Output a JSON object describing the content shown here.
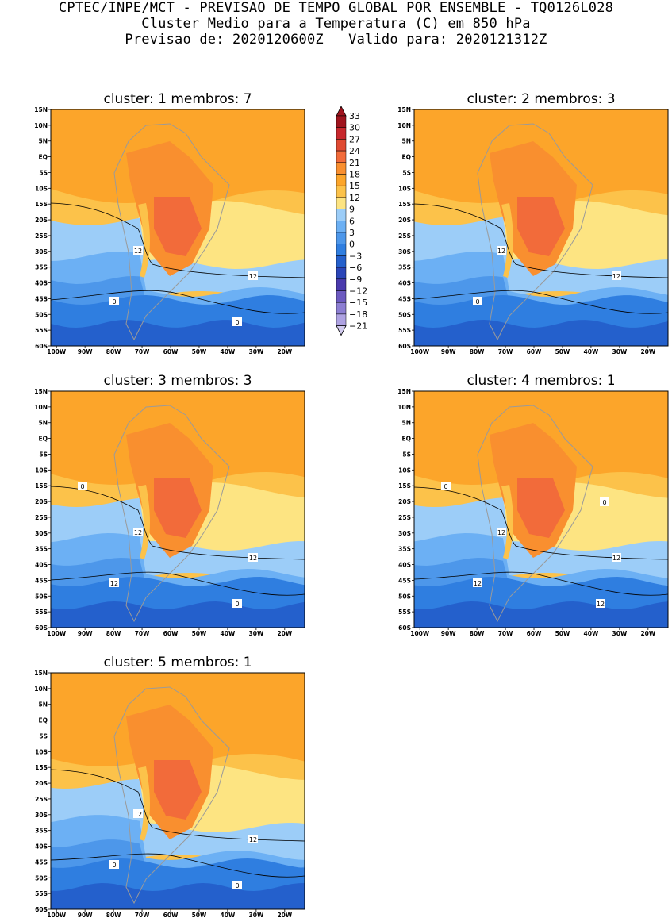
{
  "header": {
    "title": "CPTEC/INPE/MCT - PREVISAO DE TEMPO GLOBAL POR ENSEMBLE - TQ0126L028",
    "subtitle": "Cluster Medio para a Temperatura (C) em 850 hPa",
    "dates": "Previsao de: 2020120600Z   Valido para: 2020121312Z"
  },
  "axes": {
    "lat_labels": [
      "15N",
      "10N",
      "5N",
      "EQ",
      "5S",
      "10S",
      "15S",
      "20S",
      "25S",
      "30S",
      "35S",
      "40S",
      "45S",
      "50S",
      "55S",
      "60S"
    ],
    "lon_labels": [
      "100W",
      "90W",
      "80W",
      "70W",
      "60W",
      "50W",
      "40W",
      "30W",
      "20W"
    ]
  },
  "legend": {
    "levels": [
      33,
      30,
      27,
      24,
      21,
      18,
      15,
      12,
      9,
      6,
      3,
      0,
      -3,
      -6,
      -9,
      -12,
      -15,
      -18,
      -21
    ],
    "colors": [
      "#a0141e",
      "#c8282d",
      "#e04a32",
      "#f26b3a",
      "#f98f2f",
      "#fca52a",
      "#fcc24a",
      "#fde482",
      "#9ccdf8",
      "#6cb0f4",
      "#4d97ea",
      "#2f7ee0",
      "#2460cc",
      "#2a45b8",
      "#4a3aad",
      "#6c5ac0",
      "#8c7ed2",
      "#aea2e2",
      "#d2cbef"
    ]
  },
  "panels": [
    {
      "title": "cluster: 1   membros: 7",
      "contour_labels": [
        "12",
        "12",
        "0",
        "0"
      ]
    },
    {
      "title": "cluster: 2   membros: 3",
      "contour_labels": [
        "12",
        "12",
        "0"
      ]
    },
    {
      "title": "cluster: 3   membros: 3",
      "contour_labels": [
        "12",
        "12",
        "12",
        "0",
        "0"
      ]
    },
    {
      "title": "cluster: 4   membros: 1",
      "contour_labels": [
        "12",
        "12",
        "12",
        "12",
        "0",
        "0"
      ]
    },
    {
      "title": "cluster: 5   membros: 1",
      "contour_labels": [
        "12",
        "12",
        "0",
        "0"
      ]
    }
  ]
}
